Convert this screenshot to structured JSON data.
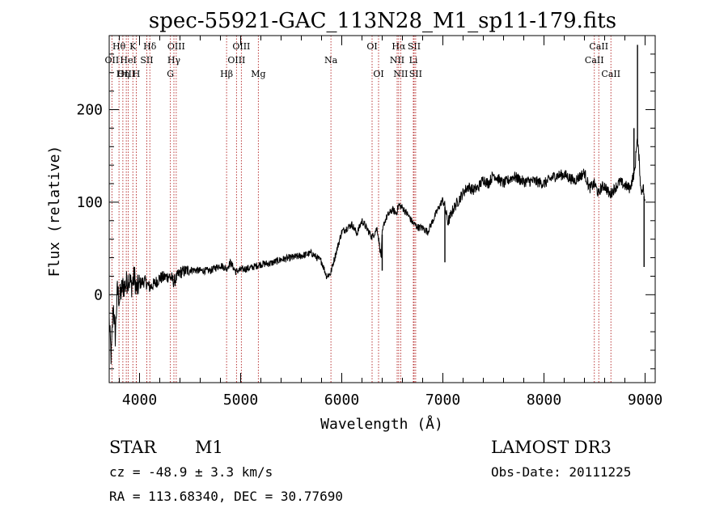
{
  "chart_data": {
    "type": "line",
    "title": "spec-55921-GAC_113N28_M1_sp11-179.fits",
    "xlabel": "Wavelength (Å)",
    "ylabel": "Flux (relative)",
    "xlim": [
      3700,
      9100
    ],
    "ylim": [
      -95,
      280
    ],
    "x_ticks": [
      4000,
      5000,
      6000,
      7000,
      8000,
      9000
    ],
    "y_ticks": [
      0,
      100,
      200
    ],
    "x_tick_labels": [
      "4000",
      "5000",
      "6000",
      "7000",
      "8000",
      "9000"
    ],
    "y_tick_labels": [
      "0",
      "100",
      "200"
    ],
    "series": [
      {
        "name": "spectrum",
        "x": [
          3700,
          3720,
          3740,
          3760,
          3780,
          3800,
          3830,
          3860,
          3890,
          3920,
          3950,
          3970,
          4000,
          4050,
          4100,
          4150,
          4200,
          4300,
          4340,
          4400,
          4500,
          4600,
          4700,
          4800,
          4860,
          4900,
          4950,
          5000,
          5100,
          5200,
          5300,
          5400,
          5500,
          5600,
          5700,
          5800,
          5850,
          5890,
          5910,
          5950,
          6000,
          6050,
          6100,
          6150,
          6200,
          6300,
          6350,
          6390,
          6400,
          6420,
          6450,
          6500,
          6540,
          6563,
          6600,
          6650,
          6700,
          6750,
          6800,
          6850,
          6900,
          6950,
          7000,
          7020,
          7050,
          7100,
          7150,
          7200,
          7250,
          7300,
          7350,
          7400,
          7450,
          7500,
          7600,
          7700,
          7800,
          7900,
          8000,
          8100,
          8200,
          8300,
          8400,
          8450,
          8500,
          8542,
          8560,
          8600,
          8650,
          8700,
          8750,
          8800,
          8850,
          8900,
          8920,
          8940,
          8960,
          8980,
          9000
        ],
        "y": [
          -28,
          -70,
          -10,
          -45,
          5,
          -5,
          8,
          10,
          18,
          10,
          20,
          5,
          12,
          15,
          8,
          12,
          18,
          20,
          14,
          24,
          27,
          26,
          26,
          32,
          28,
          35,
          25,
          27,
          29,
          33,
          34,
          38,
          40,
          42,
          45,
          36,
          20,
          23,
          32,
          48,
          68,
          72,
          76,
          66,
          80,
          62,
          72,
          40,
          65,
          78,
          85,
          92,
          88,
          97,
          94,
          87,
          78,
          73,
          72,
          68,
          80,
          92,
          103,
          95,
          78,
          92,
          101,
          110,
          117,
          113,
          116,
          125,
          120,
          130,
          120,
          128,
          122,
          123,
          120,
          128,
          130,
          123,
          132,
          115,
          120,
          108,
          115,
          118,
          108,
          115,
          122,
          118,
          115,
          135,
          170,
          148,
          110,
          118,
          95
        ]
      }
    ],
    "spikes": [
      {
        "x": 6400,
        "y": 26
      },
      {
        "x": 7020,
        "y": 35
      },
      {
        "x": 8890,
        "y": 180
      },
      {
        "x": 8925,
        "y": 270
      },
      {
        "x": 8990,
        "y": 30
      }
    ],
    "line_markers": [
      {
        "label": "Hθ",
        "wavelength": 3797,
        "row": 1
      },
      {
        "label": "OII",
        "wavelength": 3727,
        "row": 2
      },
      {
        "label": "OIII",
        "wavelength": 3869,
        "row": 3
      },
      {
        "label": "K",
        "wavelength": 3934,
        "row": 1
      },
      {
        "label": "HeI",
        "wavelength": 3889,
        "row": 2
      },
      {
        "label": "Hη",
        "wavelength": 3835,
        "row": 3
      },
      {
        "label": "H",
        "wavelength": 3968,
        "row": 3
      },
      {
        "label": "Hδ",
        "wavelength": 4102,
        "row": 1
      },
      {
        "label": "SII",
        "wavelength": 4072,
        "row": 2
      },
      {
        "label": "OIII",
        "wavelength": 4363,
        "row": 1
      },
      {
        "label": "Hγ",
        "wavelength": 4340,
        "row": 2
      },
      {
        "label": "G",
        "wavelength": 4305,
        "row": 3
      },
      {
        "label": "Hβ",
        "wavelength": 4861,
        "row": 3
      },
      {
        "label": "OIII",
        "wavelength": 5007,
        "row": 1
      },
      {
        "label": "OIII",
        "wavelength": 4959,
        "row": 2
      },
      {
        "label": "Mg",
        "wavelength": 5175,
        "row": 3
      },
      {
        "label": "Na",
        "wavelength": 5893,
        "row": 2
      },
      {
        "label": "OI",
        "wavelength": 6300,
        "row": 1
      },
      {
        "label": "OI",
        "wavelength": 6364,
        "row": 3
      },
      {
        "label": "Hα",
        "wavelength": 6563,
        "row": 1
      },
      {
        "label": "NII",
        "wavelength": 6548,
        "row": 2
      },
      {
        "label": "NII",
        "wavelength": 6583,
        "row": 3
      },
      {
        "label": "SII",
        "wavelength": 6716,
        "row": 1
      },
      {
        "label": "Li",
        "wavelength": 6708,
        "row": 2
      },
      {
        "label": "SII",
        "wavelength": 6731,
        "row": 3
      },
      {
        "label": "CaII",
        "wavelength": 8542,
        "row": 1
      },
      {
        "label": "CaII",
        "wavelength": 8498,
        "row": 2
      },
      {
        "label": "CaII",
        "wavelength": 8662,
        "row": 3
      }
    ]
  },
  "info": {
    "object_class": "STAR",
    "subclass": "M1",
    "redshift": "cz = -48.9 ± 3.3 km/s",
    "coordinates": "RA = 113.68340, DEC =  30.77690",
    "survey": "LAMOST DR3",
    "obs_date": "Obs-Date: 20111225"
  },
  "colors": {
    "spectrum": "#000000",
    "marker_line": "#b22222",
    "axis": "#000000"
  }
}
